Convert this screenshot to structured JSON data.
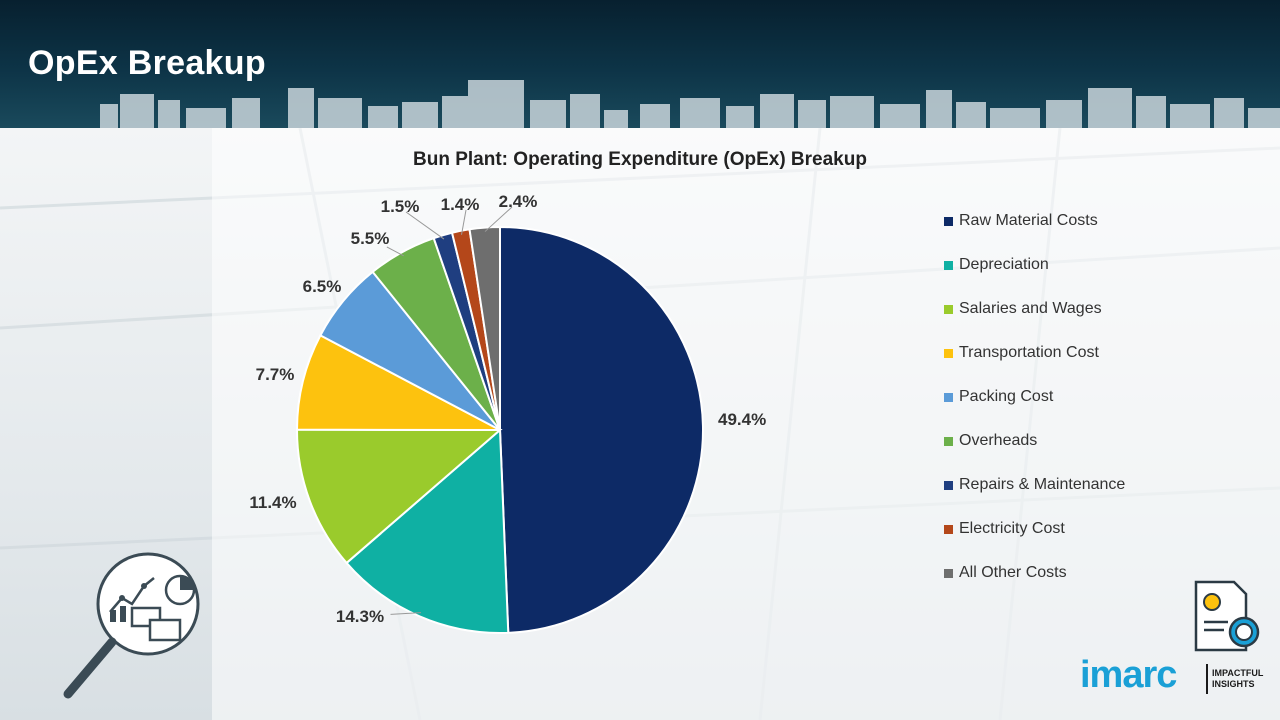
{
  "header": {
    "title": "OpEx Breakup"
  },
  "chart_data": {
    "type": "pie",
    "title": "Bun Plant: Operating Expenditure (OpEx) Breakup",
    "categories": [
      "Raw Material Costs",
      "Depreciation",
      "Salaries and Wages",
      "Transportation Cost",
      "Packing Cost",
      "Overheads",
      "Repairs & Maintenance",
      "Electricity Cost",
      "All Other Costs"
    ],
    "values": [
      49.4,
      14.3,
      11.4,
      7.7,
      6.5,
      5.5,
      1.5,
      1.4,
      2.4
    ],
    "labels": [
      "49.4%",
      "14.3%",
      "11.4%",
      "7.7%",
      "6.5%",
      "5.5%",
      "1.5%",
      "1.4%",
      "2.4%"
    ],
    "colors": [
      "#0d2a66",
      "#0fb0a3",
      "#9acb2c",
      "#fdc20e",
      "#5b9bd8",
      "#6cb04a",
      "#1f3e80",
      "#b4471a",
      "#6e6e6e"
    ],
    "legend_position": "right"
  },
  "branding": {
    "logo": "imarc",
    "tagline_1": "IMPACTFUL",
    "tagline_2": "INSIGHTS"
  },
  "icons": {
    "left": "magnifier-analytics-icon",
    "right": "cost-document-icon"
  }
}
